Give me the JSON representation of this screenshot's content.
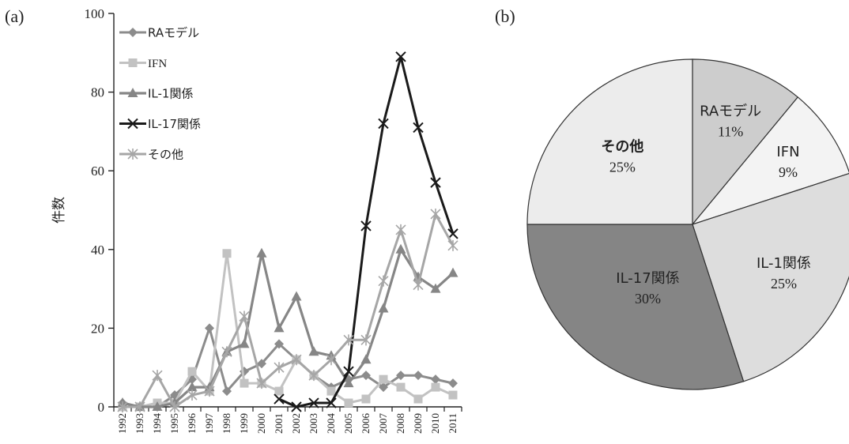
{
  "panels": {
    "a": "(a)",
    "b": "(b)"
  },
  "chart_data": [
    {
      "type": "line",
      "ylabel": "件数",
      "xlabel": "",
      "ylim": [
        0,
        100
      ],
      "yticks": [
        0,
        20,
        40,
        60,
        80,
        100
      ],
      "categories": [
        "1992",
        "1993",
        "1994",
        "1995",
        "1996",
        "1997",
        "1998",
        "1999",
        "2000",
        "2001",
        "2002",
        "2003",
        "2004",
        "2005",
        "2006",
        "2007",
        "2008",
        "2009",
        "2010",
        "2011"
      ],
      "legend_position": "top-left",
      "series": [
        {
          "name": "RAモデル",
          "marker": "diamond",
          "color": "#8c8c8c",
          "width": 3,
          "values": [
            1,
            0,
            0,
            3,
            7,
            20,
            4,
            9,
            11,
            16,
            12,
            8,
            5,
            7,
            8,
            5,
            8,
            8,
            7,
            6
          ]
        },
        {
          "name": "IFN",
          "marker": "square",
          "color": "#c2c2c2",
          "width": 3,
          "values": [
            0,
            0,
            1,
            1,
            9,
            4,
            39,
            6,
            6,
            4,
            12,
            8,
            4,
            1,
            2,
            7,
            5,
            2,
            5,
            3
          ]
        },
        {
          "name": "IL-1関係",
          "marker": "triangle",
          "color": "#868686",
          "width": 3.2,
          "values": [
            1,
            0,
            0,
            1,
            5,
            5,
            14,
            16,
            39,
            20,
            28,
            14,
            13,
            6,
            12,
            25,
            40,
            33,
            30,
            34
          ]
        },
        {
          "name": "IL-17関係",
          "marker": "x",
          "color": "#1a1a1a",
          "width": 3,
          "values": [
            null,
            null,
            null,
            null,
            null,
            null,
            null,
            null,
            null,
            2,
            0,
            1,
            1,
            9,
            46,
            72,
            89,
            71,
            57,
            44
          ]
        },
        {
          "name": "その他",
          "marker": "asterisk",
          "color": "#a6a6a6",
          "width": 3,
          "values": [
            0,
            0,
            8,
            0,
            3,
            4,
            14,
            23,
            6,
            10,
            12,
            8,
            12,
            17,
            17,
            32,
            45,
            31,
            49,
            41
          ]
        }
      ]
    },
    {
      "type": "pie",
      "start": "top",
      "direction": "clockwise",
      "slices": [
        {
          "name": "RAモデル",
          "pct": 11,
          "label": "11%",
          "fill": "#cdcdcd"
        },
        {
          "name": "IFN",
          "pct": 9,
          "label": "9%",
          "fill": "#f3f3f3"
        },
        {
          "name": "IL-1関係",
          "pct": 25,
          "label": "25%",
          "fill": "#dddddd"
        },
        {
          "name": "IL-17関係",
          "pct": 30,
          "label": "30%",
          "fill": "#858585"
        },
        {
          "name": "その他",
          "pct": 25,
          "label": "25%",
          "fill": "#ececec"
        }
      ]
    }
  ]
}
